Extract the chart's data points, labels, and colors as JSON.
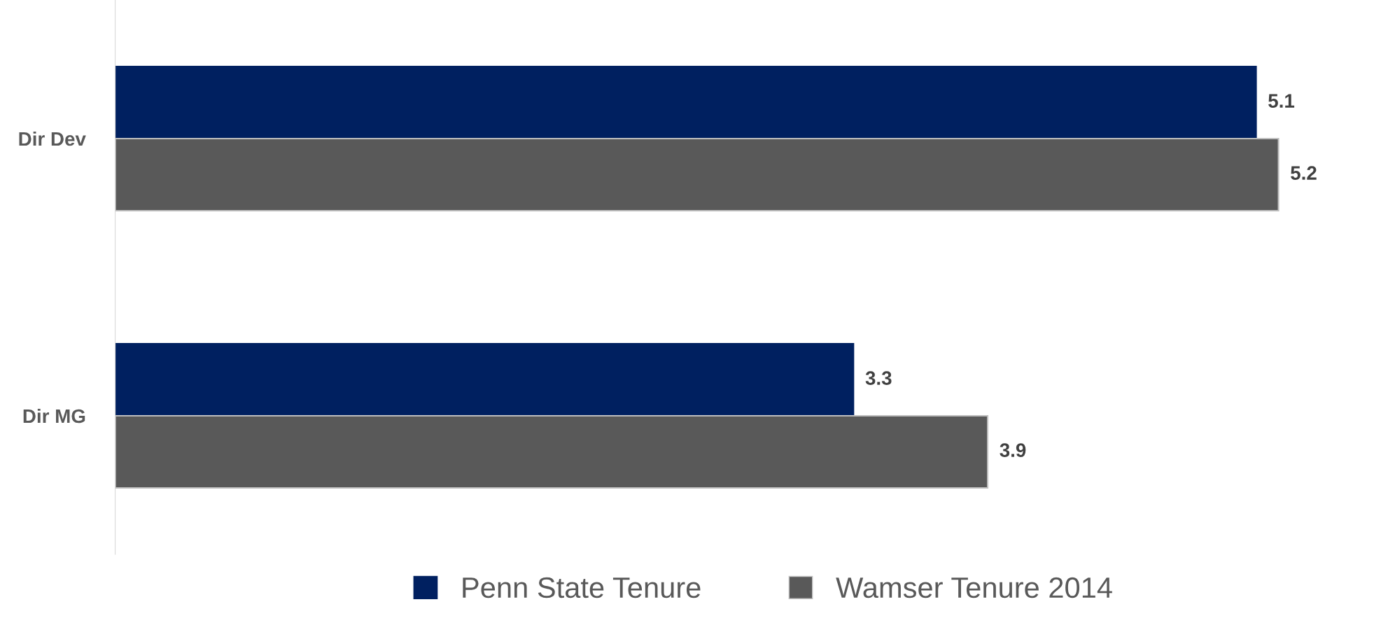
{
  "chart_data": {
    "type": "bar",
    "orientation": "horizontal",
    "categories": [
      "Dir Dev",
      "Dir MG"
    ],
    "series": [
      {
        "name": "Penn State Tenure",
        "color": "#002060",
        "values": [
          5.1,
          3.3
        ]
      },
      {
        "name": "Wamser Tenure 2014",
        "color": "#595959",
        "values": [
          5.2,
          3.9
        ]
      }
    ],
    "data_labels": true,
    "legend": "bottom",
    "grid": false
  }
}
